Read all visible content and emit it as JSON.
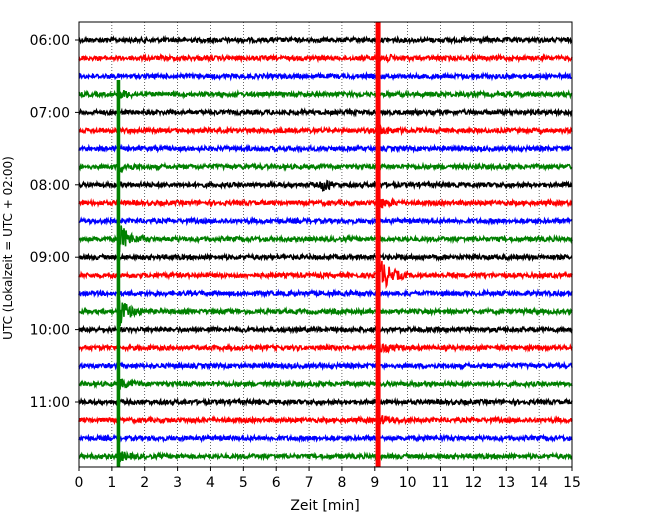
{
  "chart_data": {
    "type": "line",
    "title": "",
    "xlabel": "Zeit  [min]",
    "ylabel": "UTC (Lokalzeit = UTC + 02:00)",
    "xlim": [
      0,
      15
    ],
    "x_ticks": [
      0,
      1,
      2,
      3,
      4,
      5,
      6,
      7,
      8,
      9,
      10,
      11,
      12,
      13,
      14,
      15
    ],
    "x_tick_labels": [
      "0",
      "1",
      "2",
      "3",
      "4",
      "5",
      "6",
      "7",
      "8",
      "9",
      "10",
      "11",
      "12",
      "13",
      "14",
      "15"
    ],
    "y_tick_labels": [
      "06:00",
      "07:00",
      "08:00",
      "09:00",
      "10:00",
      "11:00"
    ],
    "y_tick_rows": [
      0,
      4,
      8,
      12,
      16,
      20
    ],
    "grid": "vertical-dotted",
    "row_count": 24,
    "row_interval_minutes": 15,
    "color_cycle": [
      "#000000",
      "#ff0000",
      "#0000ff",
      "#008000"
    ],
    "events": [
      {
        "x_min": 1.2,
        "description": "nearby event on green trace"
      },
      {
        "x_min": 9.1,
        "description": "large event on red trace"
      },
      {
        "x_min": 7.5,
        "description": "small burst on black trace"
      }
    ]
  }
}
